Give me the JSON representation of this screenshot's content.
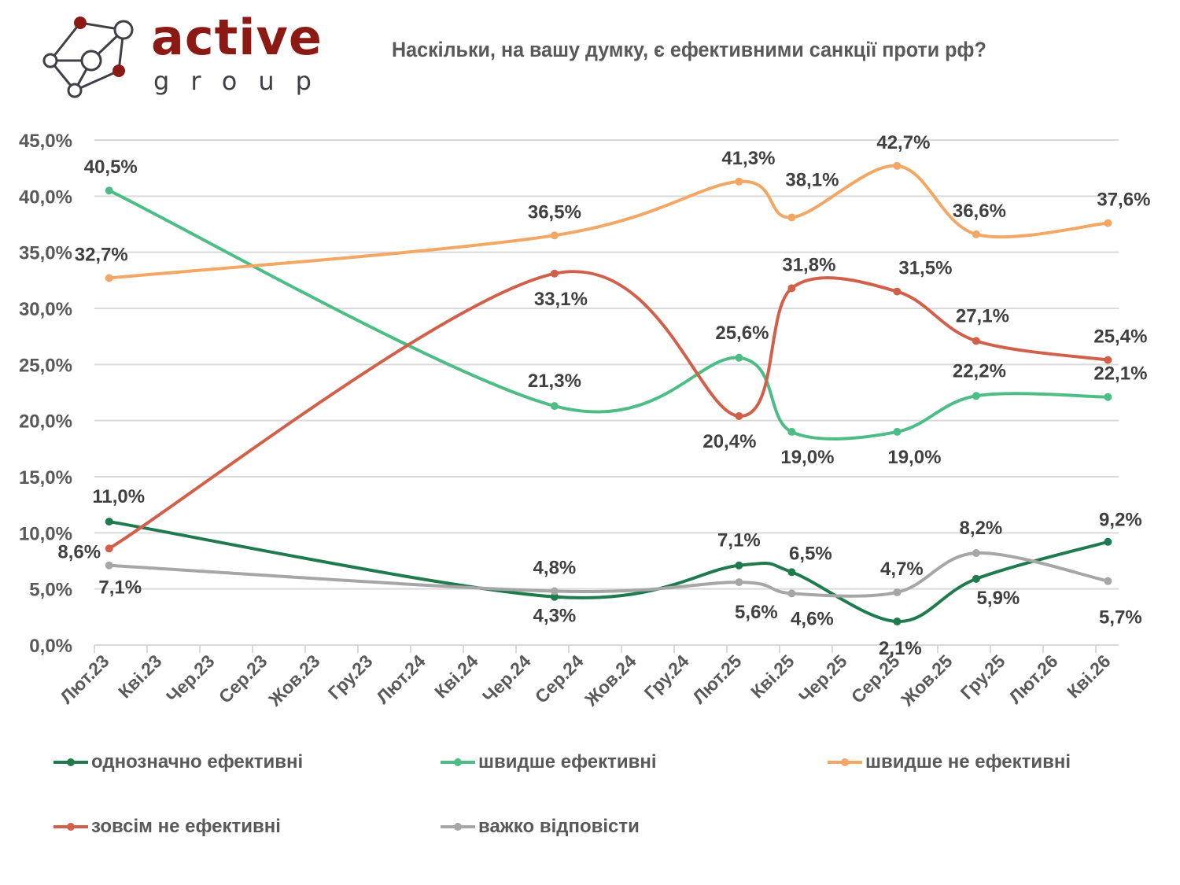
{
  "logo": {
    "word": "active",
    "sub": "group",
    "brand_color": "#8b1a14"
  },
  "chart_data": {
    "type": "line",
    "title": "Наскільки, на вашу думку, є ефективними санкції проти рф?",
    "xlabel": "",
    "ylabel": "",
    "ylim": [
      0,
      45
    ],
    "y_ticks": [
      0,
      5,
      10,
      15,
      20,
      25,
      30,
      35,
      40,
      45
    ],
    "y_tick_labels": [
      "0,0%",
      "5,0%",
      "10,0%",
      "15,0%",
      "20,0%",
      "25,0%",
      "30,0%",
      "35,0%",
      "40,0%",
      "45,0%"
    ],
    "x_tick_labels": [
      "Лют.23",
      "Кві.23",
      "Чер.23",
      "Сер.23",
      "Жов.23",
      "Гру.23",
      "Лют.24",
      "Кві.24",
      "Чер.24",
      "Сер.24",
      "Жов.24",
      "Гру.24",
      "Лют.25",
      "Кві.25",
      "Чер.25",
      "Сер.25",
      "Жов.25",
      "Гру.25",
      "Лют.26",
      "Кві.26"
    ],
    "x_unit": "months since Лют.23",
    "xlim": [
      0,
      38.9
    ],
    "x": [
      0.5,
      17.4,
      24.4,
      26.4,
      30.4,
      33.4,
      38.4
    ],
    "grid": true,
    "legend_position": "bottom",
    "series": [
      {
        "name": "однозначно ефективні",
        "color": "#1f7a4d",
        "points": [
          [
            0.5,
            11.0
          ],
          [
            17.4,
            4.3
          ],
          [
            24.4,
            7.1
          ],
          [
            26.4,
            6.5
          ],
          [
            30.4,
            2.1
          ],
          [
            33.4,
            5.9
          ],
          [
            38.4,
            9.2
          ]
        ],
        "labels": [
          "11,0%",
          "4,3%",
          "7,1%",
          "6,5%",
          "2,1%",
          "5,9%",
          "9,2%"
        ]
      },
      {
        "name": "швидше ефективні",
        "color": "#4dbd85",
        "points": [
          [
            0.5,
            40.5
          ],
          [
            17.4,
            21.3
          ],
          [
            24.4,
            25.6
          ],
          [
            26.4,
            19.0
          ],
          [
            30.4,
            19.0
          ],
          [
            33.4,
            22.2
          ],
          [
            38.4,
            22.1
          ]
        ],
        "labels": [
          "40,5%",
          "21,3%",
          "25,6%",
          "19,0%",
          "19,0%",
          "22,2%",
          "22,1%"
        ]
      },
      {
        "name": "швидше не ефективні",
        "color": "#f2a765",
        "points": [
          [
            0.5,
            32.7
          ],
          [
            17.4,
            36.5
          ],
          [
            24.4,
            41.3
          ],
          [
            26.4,
            38.1
          ],
          [
            30.4,
            42.7
          ],
          [
            33.4,
            36.6
          ],
          [
            38.4,
            37.6
          ]
        ],
        "labels": [
          "32,7%",
          "36,5%",
          "41,3%",
          "38,1%",
          "42,7%",
          "36,6%",
          "37,6%"
        ]
      },
      {
        "name": "зовсім не ефективні",
        "color": "#d1604b",
        "points": [
          [
            0.5,
            8.6
          ],
          [
            17.4,
            33.1
          ],
          [
            24.4,
            20.4
          ],
          [
            26.4,
            31.8
          ],
          [
            30.4,
            31.5
          ],
          [
            33.4,
            27.1
          ],
          [
            38.4,
            25.4
          ]
        ],
        "labels": [
          "8,6%",
          "33,1%",
          "20,4%",
          "31,8%",
          "31,5%",
          "27,1%",
          "25,4%"
        ]
      },
      {
        "name": "важко відповісти",
        "color": "#a6a6a6",
        "points": [
          [
            0.5,
            7.1
          ],
          [
            17.4,
            4.8
          ],
          [
            24.4,
            5.6
          ],
          [
            26.4,
            4.6
          ],
          [
            30.4,
            4.7
          ],
          [
            33.4,
            8.2
          ],
          [
            38.4,
            5.7
          ]
        ],
        "labels": [
          "7,1%",
          "4,8%",
          "5,6%",
          "4,6%",
          "4,7%",
          "8,2%",
          "5,7%"
        ]
      }
    ]
  }
}
